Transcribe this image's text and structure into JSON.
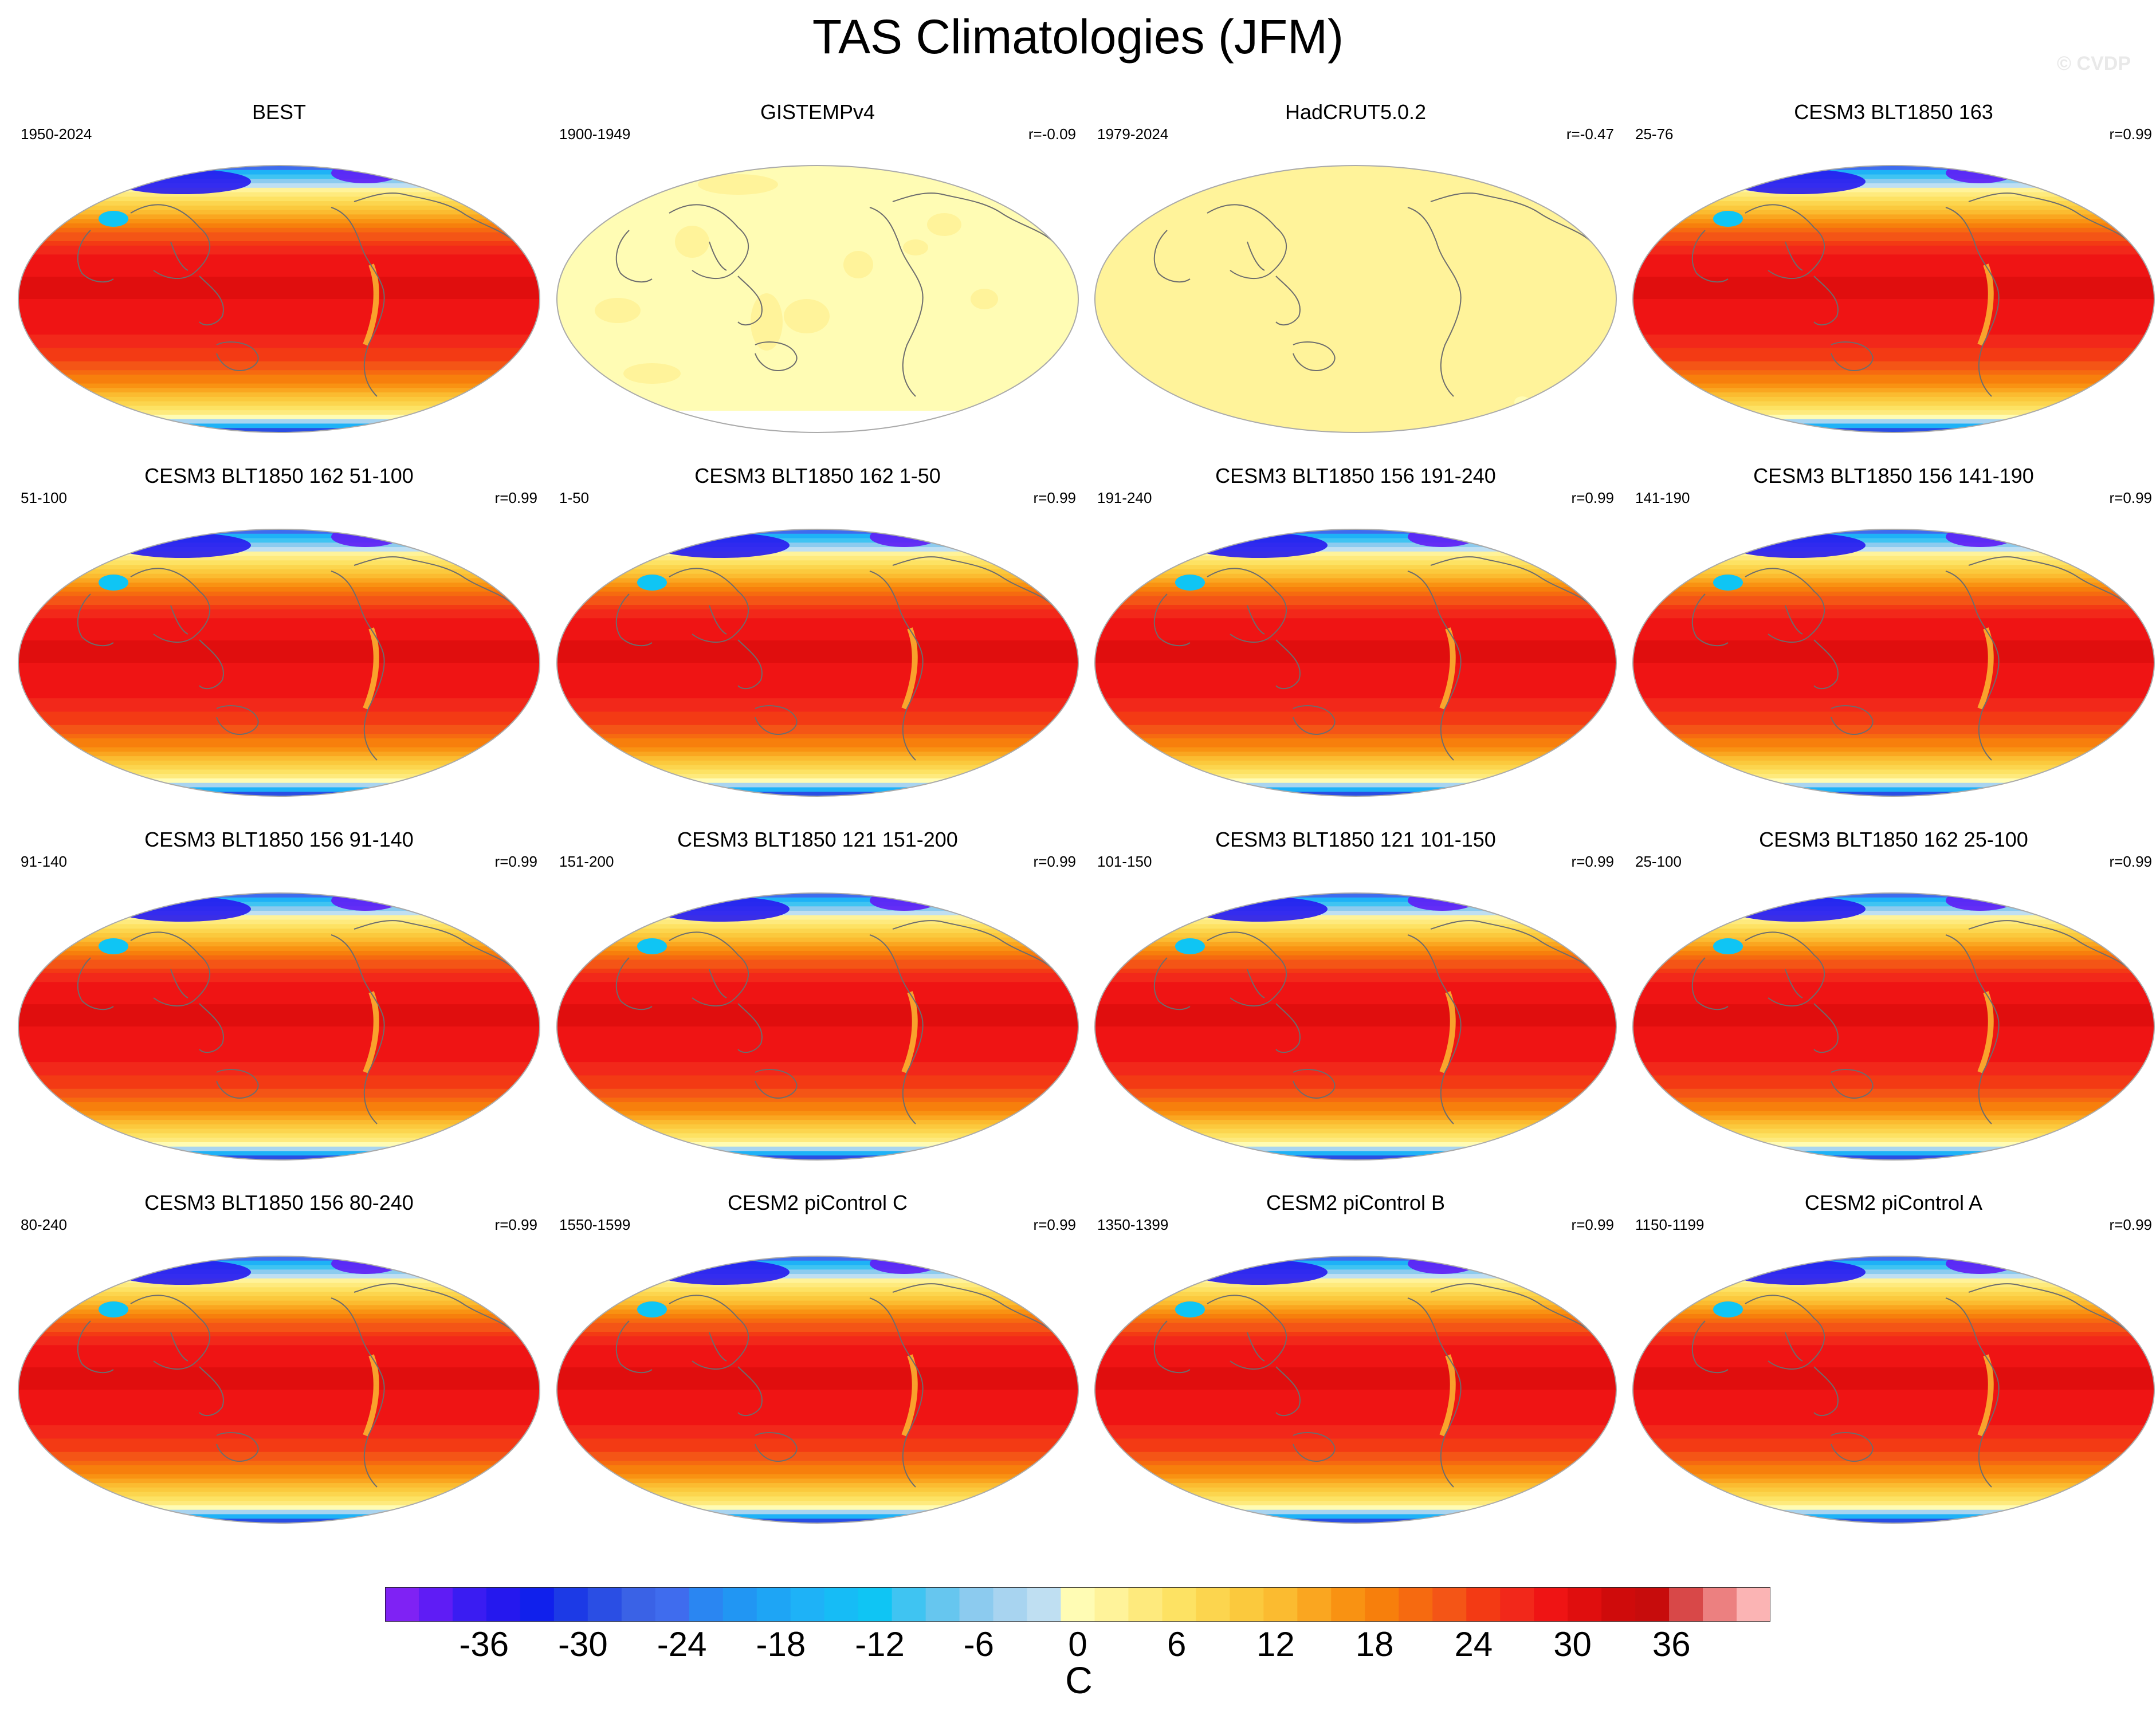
{
  "title": "TAS Climatologies (JFM)",
  "watermark": "© CVDP",
  "chart_data": {
    "type": "heatmap",
    "projection": "Robinson",
    "variable": "TAS",
    "season": "JFM",
    "panels": [
      {
        "title": "BEST",
        "years": "1950-2024",
        "r": "",
        "pattern": "model"
      },
      {
        "title": "GISTEMPv4",
        "years": "1900-1949",
        "r": "r=-0.09",
        "pattern": "gistemp"
      },
      {
        "title": "HadCRUT5.0.2",
        "years": "1979-2024",
        "r": "r=-0.47",
        "pattern": "hadcrut"
      },
      {
        "title": "CESM3 BLT1850 163",
        "years": "25-76",
        "r": "r=0.99",
        "pattern": "model"
      },
      {
        "title": "CESM3 BLT1850 162 51-100",
        "years": "51-100",
        "r": "r=0.99",
        "pattern": "model"
      },
      {
        "title": "CESM3 BLT1850 162 1-50",
        "years": "1-50",
        "r": "r=0.99",
        "pattern": "model"
      },
      {
        "title": "CESM3 BLT1850 156 191-240",
        "years": "191-240",
        "r": "r=0.99",
        "pattern": "model"
      },
      {
        "title": "CESM3 BLT1850 156 141-190",
        "years": "141-190",
        "r": "r=0.99",
        "pattern": "model"
      },
      {
        "title": "CESM3 BLT1850 156 91-140",
        "years": "91-140",
        "r": "r=0.99",
        "pattern": "model"
      },
      {
        "title": "CESM3 BLT1850 121 151-200",
        "years": "151-200",
        "r": "r=0.99",
        "pattern": "model"
      },
      {
        "title": "CESM3 BLT1850 121 101-150",
        "years": "101-150",
        "r": "r=0.99",
        "pattern": "model"
      },
      {
        "title": "CESM3 BLT1850 162 25-100",
        "years": "25-100",
        "r": "r=0.99",
        "pattern": "model"
      },
      {
        "title": "CESM3 BLT1850 156 80-240",
        "years": "80-240",
        "r": "r=0.99",
        "pattern": "model"
      },
      {
        "title": "CESM2 piControl C",
        "years": "1550-1599",
        "r": "r=0.99",
        "pattern": "model"
      },
      {
        "title": "CESM2 piControl B",
        "years": "1350-1399",
        "r": "r=0.99",
        "pattern": "model"
      },
      {
        "title": "CESM2 piControl A",
        "years": "1150-1199",
        "r": "r=0.99",
        "pattern": "model"
      }
    ],
    "colorbar": {
      "units": "C",
      "levels": [
        -42,
        -40,
        -38,
        -36,
        -34,
        -32,
        -30,
        -28,
        -26,
        -24,
        -22,
        -20,
        -18,
        -16,
        -14,
        -12,
        -10,
        -8,
        -6,
        -4,
        -2,
        0,
        2,
        4,
        6,
        8,
        10,
        12,
        14,
        16,
        18,
        20,
        22,
        24,
        26,
        28,
        30,
        32,
        34,
        36,
        38,
        40,
        42
      ],
      "tick_labels": [
        "-36",
        "-30",
        "-24",
        "-18",
        "-12",
        "-6",
        "0",
        "6",
        "12",
        "18",
        "24",
        "30",
        "36"
      ],
      "tick_values": [
        -36,
        -30,
        -24,
        -18,
        -12,
        -6,
        0,
        6,
        12,
        18,
        24,
        30,
        36
      ],
      "colors": [
        "#7f22f4",
        "#5f1cf5",
        "#3a1cf2",
        "#2518ee",
        "#1020ec",
        "#1c3ae6",
        "#2a4ee4",
        "#3a62e6",
        "#3f6cee",
        "#2a86f2",
        "#2196f3",
        "#1ea5f5",
        "#1eb2f7",
        "#16bcf6",
        "#0fc5f4",
        "#3fc4f2",
        "#66c6ef",
        "#8ccbef",
        "#a8d4f0",
        "#bfdff2",
        "#fffcb4",
        "#fff39a",
        "#feea7d",
        "#fde263",
        "#fcd54e",
        "#fbc93d",
        "#fbbb30",
        "#faa620",
        "#f99212",
        "#f77f0c",
        "#f66a10",
        "#f45516",
        "#f33a14",
        "#f2281a",
        "#ef1414",
        "#e00e0e",
        "#cf0b0b",
        "#c70c0c",
        "#d84848",
        "#ec8080",
        "#fbb4b4"
      ]
    }
  }
}
